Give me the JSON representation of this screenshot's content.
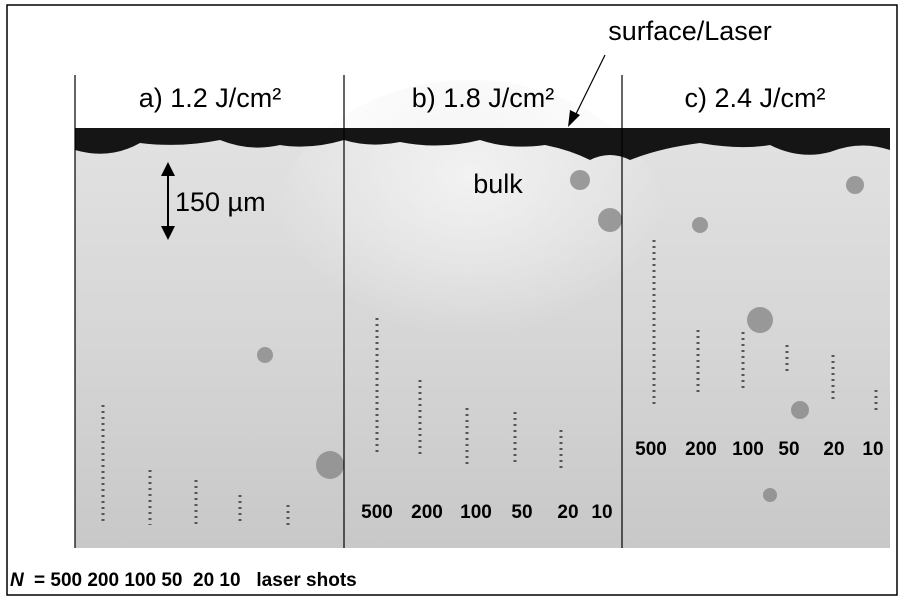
{
  "annotation": "surface/Laser",
  "panels": [
    {
      "title": "a) 1.2 J/cm²"
    },
    {
      "title": "b) 1.8 J/cm²",
      "shots": [
        500,
        200,
        100,
        50,
        20,
        10
      ]
    },
    {
      "title": "c) 2.4 J/cm²",
      "shots": [
        500,
        200,
        100,
        50,
        20,
        10
      ]
    }
  ],
  "scale_label": "150 µm",
  "bulk_label": "bulk",
  "footer": {
    "variable": "N",
    "text": "= 500 200 100 50  20 10   laser shots"
  }
}
